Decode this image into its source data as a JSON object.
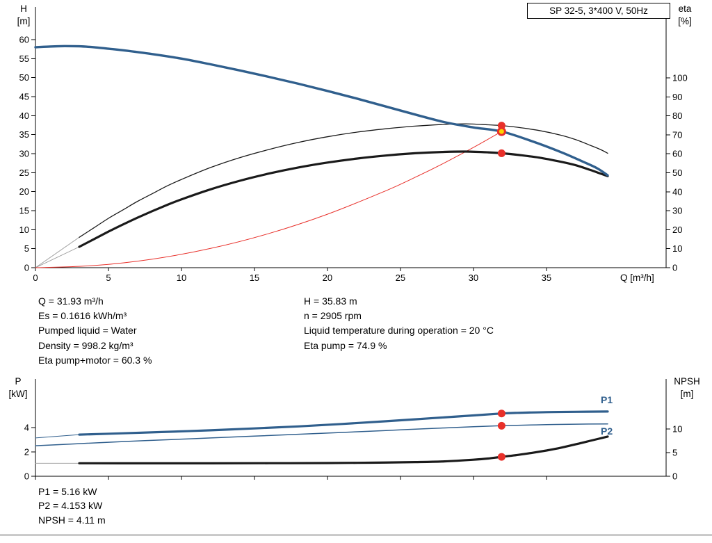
{
  "title_box": {
    "label": "SP 32-5, 3*400 V, 50Hz"
  },
  "axes_labels": {
    "h": "H",
    "h_unit": "[m]",
    "eta": "eta",
    "eta_unit": "[%]",
    "q": "Q [m³/h]",
    "p": "P",
    "p_unit": "[kW]",
    "npsh": "NPSH",
    "npsh_unit": "[m]"
  },
  "operating_point_info": {
    "left_column": [
      "Q = 31.93 m³/h",
      "Es = 0.1616 kWh/m³",
      "Pumped liquid = Water",
      "Density = 998.2 kg/m³",
      "Eta pump+motor = 60.3 %"
    ],
    "right_column": [
      "H = 35.83 m",
      "n = 2905 rpm",
      "Liquid temperature during operation = 20 °C",
      "Eta pump = 74.9 %"
    ]
  },
  "bottom_info": [
    "P1 = 5.16 kW",
    "P2 = 4.153 kW",
    "NPSH = 4.11 m"
  ],
  "curve_labels": {
    "p1": "P1",
    "p2": "P2"
  },
  "colors": {
    "blue": "#305f8d",
    "black": "#1a1a1a",
    "red": "#e8302a",
    "yellow": "#ffd400",
    "gray": "#999999"
  },
  "duty_point": {
    "q_m3h": 31.93,
    "h_m": 35.83,
    "eta_pump_pct": 74.9,
    "eta_pump_motor_pct": 60.3,
    "p1_kw": 5.16,
    "p2_kw": 4.153,
    "npsh_m": 4.11
  },
  "chart_data": [
    {
      "id": "top",
      "type": "line",
      "title": "SP 32-5, 3*400 V, 50Hz",
      "x_axis": {
        "label": "Q [m³/h]",
        "range": [
          0,
          43.2
        ],
        "ticks": [
          0,
          5,
          10,
          15,
          20,
          25,
          30,
          35
        ]
      },
      "y_left": {
        "label": "H [m]",
        "range": [
          0,
          68.6
        ],
        "ticks": [
          0,
          5,
          10,
          15,
          20,
          25,
          30,
          35,
          40,
          45,
          50,
          55,
          60
        ]
      },
      "y_right": {
        "label": "eta [%]",
        "range": [
          0,
          137.4
        ],
        "ticks": [
          0,
          10,
          20,
          30,
          40,
          50,
          60,
          70,
          80,
          90,
          100
        ]
      },
      "grid": false,
      "series": [
        {
          "name": "eta pump lead-in",
          "axis": "right",
          "color": "gray",
          "width": 0.9,
          "points": [
            [
              0,
              0
            ],
            [
              3,
              16
            ]
          ]
        },
        {
          "name": "eta pump+motor lead-in",
          "axis": "right",
          "color": "gray",
          "width": 0.9,
          "points": [
            [
              0,
              0
            ],
            [
              3,
              11
            ]
          ]
        },
        {
          "name": "system duty curve",
          "axis": "left",
          "color": "red",
          "width": 1,
          "points": [
            [
              0,
              0
            ],
            [
              4,
              0.56
            ],
            [
              8,
              2.25
            ],
            [
              12,
              5.06
            ],
            [
              16,
              9.0
            ],
            [
              20,
              14.06
            ],
            [
              24,
              20.24
            ],
            [
              26,
              23.76
            ],
            [
              28,
              27.55
            ],
            [
              30,
              31.63
            ],
            [
              31.93,
              35.83
            ]
          ]
        },
        {
          "name": "eta pump",
          "axis": "right",
          "color": "black",
          "width": 1.3,
          "points": [
            [
              3,
              16
            ],
            [
              4,
              21
            ],
            [
              5,
              26
            ],
            [
              6,
              30.5
            ],
            [
              7,
              35
            ],
            [
              8,
              39
            ],
            [
              9,
              43
            ],
            [
              10,
              46.5
            ],
            [
              12,
              52.8
            ],
            [
              14,
              58
            ],
            [
              16,
              62.3
            ],
            [
              18,
              66
            ],
            [
              20,
              69
            ],
            [
              22,
              71.4
            ],
            [
              24,
              73.2
            ],
            [
              26,
              74.6
            ],
            [
              28,
              75.5
            ],
            [
              29.5,
              75.8
            ],
            [
              31,
              75.3
            ],
            [
              31.93,
              74.9
            ],
            [
              33,
              74
            ],
            [
              34.5,
              72.3
            ],
            [
              36,
              69.8
            ],
            [
              37,
              67.5
            ],
            [
              38,
              64.5
            ],
            [
              38.7,
              62.3
            ],
            [
              39.2,
              60.3
            ]
          ]
        },
        {
          "name": "eta pump+motor",
          "axis": "right",
          "color": "black",
          "width": 3.2,
          "points": [
            [
              3,
              11
            ],
            [
              4,
              15
            ],
            [
              5,
              19
            ],
            [
              6,
              22.8
            ],
            [
              7,
              26.4
            ],
            [
              8,
              29.8
            ],
            [
              9,
              33
            ],
            [
              10,
              36
            ],
            [
              12,
              41.3
            ],
            [
              14,
              45.8
            ],
            [
              16,
              49.6
            ],
            [
              18,
              52.8
            ],
            [
              20,
              55.4
            ],
            [
              22,
              57.5
            ],
            [
              24,
              59.1
            ],
            [
              26,
              60.3
            ],
            [
              28,
              61.0
            ],
            [
              29.5,
              61.2
            ],
            [
              31,
              60.8
            ],
            [
              31.93,
              60.3
            ],
            [
              33,
              59.5
            ],
            [
              34.5,
              58
            ],
            [
              36,
              55.8
            ],
            [
              37,
              54
            ],
            [
              38,
              51.5
            ],
            [
              38.7,
              49.6
            ],
            [
              39.2,
              48.2
            ]
          ]
        },
        {
          "name": "H-Q pump curve",
          "axis": "left",
          "color": "blue",
          "width": 3.4,
          "points": [
            [
              0,
              58.0
            ],
            [
              1,
              58.2
            ],
            [
              2,
              58.3
            ],
            [
              3,
              58.25
            ],
            [
              4,
              58.0
            ],
            [
              5,
              57.6
            ],
            [
              6,
              57.2
            ],
            [
              8,
              56.2
            ],
            [
              10,
              55.0
            ],
            [
              12,
              53.5
            ],
            [
              14,
              51.9
            ],
            [
              16,
              50.2
            ],
            [
              18,
              48.4
            ],
            [
              20,
              46.5
            ],
            [
              22,
              44.5
            ],
            [
              24,
              42.4
            ],
            [
              26,
              40.3
            ],
            [
              28,
              38.3
            ],
            [
              30,
              36.9
            ],
            [
              31.93,
              35.83
            ],
            [
              34,
              33.3
            ],
            [
              36,
              30.4
            ],
            [
              37.5,
              27.9
            ],
            [
              38.5,
              26.1
            ],
            [
              39.2,
              24.3
            ]
          ]
        }
      ],
      "markers": [
        {
          "name": "eta-pump-duty",
          "x": 31.93,
          "y": 74.9,
          "axis": "right",
          "fill": "red",
          "r": 5.5
        },
        {
          "name": "eta-pump-motor-duty",
          "x": 31.93,
          "y": 60.3,
          "axis": "right",
          "fill": "red",
          "r": 5.5
        },
        {
          "name": "hq-duty",
          "x": 31.93,
          "y": 35.83,
          "axis": "left",
          "fill": "yellow",
          "stroke": "red",
          "stroke_width": 3,
          "r": 5
        }
      ]
    },
    {
      "id": "bottom",
      "type": "line",
      "title": "",
      "x_axis": {
        "label": "",
        "range": [
          0,
          43.2
        ],
        "ticks": [
          0,
          5,
          10,
          15,
          20,
          25,
          30,
          35
        ]
      },
      "y_left": {
        "label": "P [kW]",
        "range": [
          0,
          8
        ],
        "ticks": [
          0,
          2,
          4
        ]
      },
      "y_right": {
        "label": "NPSH [m]",
        "range": [
          0,
          20.6
        ],
        "ticks": [
          0,
          5,
          10
        ]
      },
      "grid": false,
      "series": [
        {
          "name": "P1 lead-in",
          "axis": "left",
          "color": "blue",
          "width": 1,
          "points": [
            [
              0,
              3.15
            ],
            [
              3,
              3.42
            ]
          ]
        },
        {
          "name": "NPSH lead-in",
          "axis": "right",
          "color": "gray",
          "width": 0.9,
          "points": [
            [
              0,
              2.75
            ],
            [
              3,
              2.75
            ]
          ]
        },
        {
          "name": "P2",
          "axis": "left",
          "color": "blue",
          "width": 1.5,
          "points": [
            [
              0,
              2.51
            ],
            [
              3,
              2.68
            ],
            [
              6,
              2.85
            ],
            [
              9,
              3.0
            ],
            [
              12,
              3.15
            ],
            [
              15,
              3.3
            ],
            [
              18,
              3.45
            ],
            [
              21,
              3.6
            ],
            [
              24,
              3.76
            ],
            [
              27,
              3.92
            ],
            [
              30,
              4.07
            ],
            [
              31.93,
              4.153
            ],
            [
              33,
              4.19
            ],
            [
              35,
              4.24
            ],
            [
              37,
              4.28
            ],
            [
              39.2,
              4.3
            ]
          ]
        },
        {
          "name": "P1",
          "axis": "left",
          "color": "blue",
          "width": 3.2,
          "points": [
            [
              3,
              3.42
            ],
            [
              6,
              3.53
            ],
            [
              9,
              3.65
            ],
            [
              12,
              3.78
            ],
            [
              15,
              3.93
            ],
            [
              18,
              4.1
            ],
            [
              21,
              4.3
            ],
            [
              24,
              4.52
            ],
            [
              27,
              4.76
            ],
            [
              30,
              5.0
            ],
            [
              31.93,
              5.16
            ],
            [
              33,
              5.21
            ],
            [
              35,
              5.27
            ],
            [
              37,
              5.3
            ],
            [
              39.2,
              5.32
            ]
          ]
        },
        {
          "name": "NPSH",
          "axis": "right",
          "color": "black",
          "width": 3.2,
          "points": [
            [
              3,
              2.75
            ],
            [
              8,
              2.74
            ],
            [
              12,
              2.74
            ],
            [
              16,
              2.76
            ],
            [
              20,
              2.8
            ],
            [
              23,
              2.87
            ],
            [
              26,
              3.0
            ],
            [
              28,
              3.15
            ],
            [
              30,
              3.5
            ],
            [
              31,
              3.75
            ],
            [
              31.93,
              4.11
            ],
            [
              33,
              4.5
            ],
            [
              34,
              4.95
            ],
            [
              35,
              5.45
            ],
            [
              36,
              6.05
            ],
            [
              37,
              6.75
            ],
            [
              38,
              7.5
            ],
            [
              39.2,
              8.4
            ]
          ]
        }
      ],
      "markers": [
        {
          "name": "p1-duty",
          "x": 31.93,
          "y": 5.16,
          "axis": "left",
          "fill": "red",
          "r": 5.5
        },
        {
          "name": "p2-duty",
          "x": 31.93,
          "y": 4.153,
          "axis": "left",
          "fill": "red",
          "r": 5.5
        },
        {
          "name": "npsh-duty",
          "x": 31.93,
          "y": 4.11,
          "axis": "right",
          "fill": "red",
          "r": 5.5
        }
      ]
    }
  ]
}
